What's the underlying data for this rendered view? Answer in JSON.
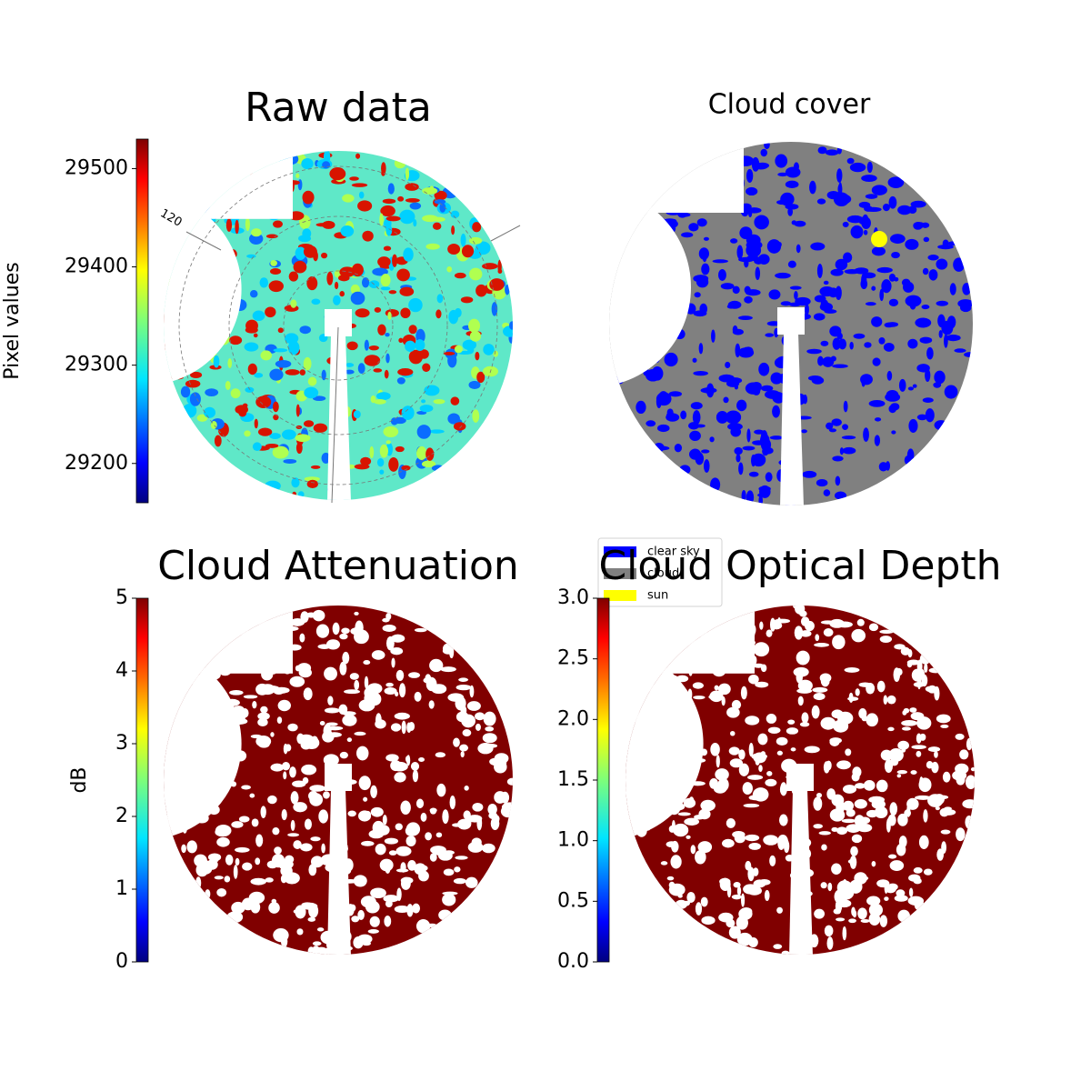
{
  "chart_data": [
    {
      "type": "image",
      "title": "Raw data",
      "ylabel": "Pixel values",
      "colormap": "jet",
      "ylim": [
        29160,
        29530
      ],
      "yticks": [
        29200,
        29300,
        29400,
        29500
      ],
      "annotations": [
        "120"
      ]
    },
    {
      "type": "image",
      "title": "Cloud cover",
      "series": [
        {
          "name": "clear sky",
          "color": "#0000ff"
        },
        {
          "name": "cloud",
          "color": "#808080"
        },
        {
          "name": "sun",
          "color": "#ffff00"
        }
      ]
    },
    {
      "type": "image",
      "title": "Cloud Attenuation",
      "ylabel": "dB",
      "colormap": "jet",
      "ylim": [
        0,
        5
      ],
      "yticks": [
        0,
        1,
        2,
        3,
        4,
        5
      ]
    },
    {
      "type": "image",
      "title": "Cloud Optical Depth",
      "colormap": "jet",
      "ylim": [
        0,
        3
      ],
      "yticks": [
        {
          "value": 0,
          "label": "0.0"
        },
        {
          "value": 0.5,
          "label": "0.5"
        },
        {
          "value": 1,
          "label": "1.0"
        },
        {
          "value": 1.5,
          "label": "1.5"
        },
        {
          "value": 2,
          "label": "2.0"
        },
        {
          "value": 2.5,
          "label": "2.5"
        },
        {
          "value": 3,
          "label": "3.0"
        }
      ]
    }
  ]
}
